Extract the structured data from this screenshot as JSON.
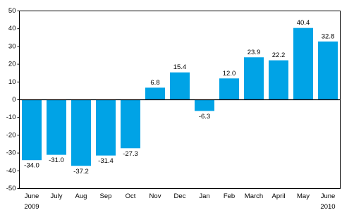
{
  "chart_data": {
    "type": "bar",
    "categories": [
      "June",
      "July",
      "Aug",
      "Sep",
      "Oct",
      "Nov",
      "Dec",
      "Jan",
      "Feb",
      "March",
      "April",
      "May",
      "June"
    ],
    "sublabels": [
      "2009",
      null,
      null,
      null,
      null,
      null,
      null,
      null,
      null,
      null,
      null,
      null,
      "2010"
    ],
    "values": [
      -34,
      -31,
      -37.2,
      -31.4,
      -27.3,
      6.8,
      15.4,
      -6.3,
      12,
      23.9,
      22.2,
      40.4,
      32.8
    ],
    "value_labels": [
      "-34.0",
      "-31.0",
      "-37.2",
      "-31.4",
      "-27.3",
      "6.8",
      "15.4",
      "-6.3",
      "12.0",
      "23.9",
      "22.2",
      "40.4",
      "32.8"
    ],
    "color": "#00a3e6",
    "ylim": [
      -50,
      50
    ],
    "yticks": [
      -50,
      -40,
      -30,
      -20,
      -10,
      0,
      10,
      20,
      30,
      40,
      50
    ],
    "grid": false
  }
}
